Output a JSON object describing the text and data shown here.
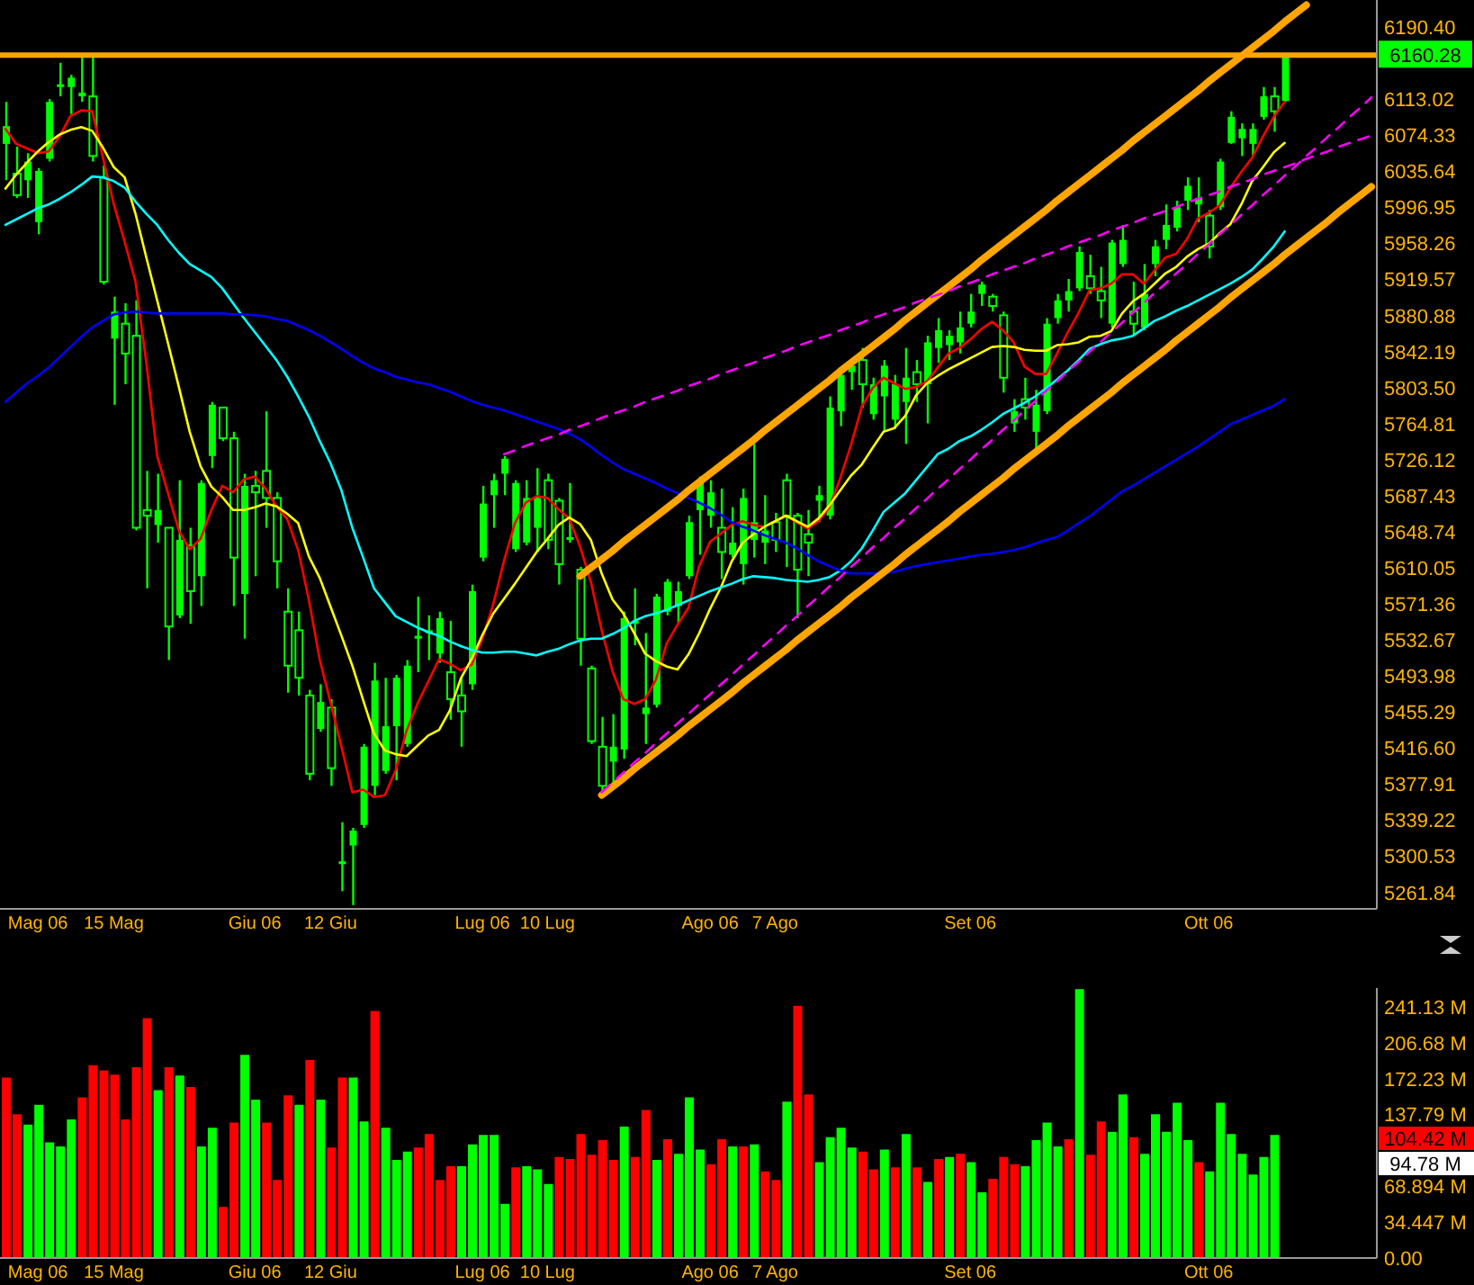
{
  "chart_data": [
    {
      "type": "candlestick",
      "color": "#00ff00",
      "categories": [
        null,
        null,
        null,
        "Mag 06",
        null,
        null,
        null,
        null,
        null,
        null,
        "15 Mag",
        null,
        null,
        null,
        null,
        null,
        null,
        null,
        null,
        null,
        null,
        null,
        null,
        "Giu 06",
        null,
        null,
        null,
        null,
        null,
        null,
        "12 Giu",
        null,
        null,
        null,
        null,
        null,
        null,
        null,
        null,
        null,
        null,
        null,
        null,
        null,
        "Lug 06",
        null,
        null,
        null,
        null,
        null,
        "10 Lug",
        null,
        null,
        null,
        null,
        null,
        null,
        null,
        null,
        null,
        null,
        null,
        null,
        null,
        null,
        "Ago 06",
        null,
        null,
        null,
        null,
        null,
        "7 Ago",
        null,
        null,
        null,
        null,
        null,
        null,
        null,
        null,
        null,
        null,
        null,
        null,
        null,
        null,
        null,
        null,
        null,
        "Set 06",
        null,
        null,
        null,
        null,
        null,
        null,
        null,
        null,
        null,
        null,
        null,
        null,
        null,
        null,
        null,
        null,
        null,
        null,
        null,
        null,
        null,
        "Ott 06",
        null,
        null,
        null,
        null,
        null,
        null,
        null,
        null,
        null,
        null,
        null,
        null,
        null,
        null,
        null
      ],
      "ohlc": [
        [
          6065,
          6110,
          6026,
          6084
        ],
        [
          6033,
          6062,
          6007,
          6010
        ],
        [
          6026,
          6055,
          6007,
          6046
        ],
        [
          5981,
          6039,
          5968,
          6036
        ],
        [
          6049,
          6113,
          6046,
          6110
        ],
        [
          6126,
          6152,
          6116,
          6129
        ],
        [
          6126,
          6139,
          6097,
          6136
        ],
        [
          6116,
          6158,
          6110,
          6120
        ],
        [
          6116,
          6158,
          6046,
          6052
        ],
        [
          6029,
          6042,
          5914,
          5917
        ],
        [
          5856,
          5901,
          5785,
          5885
        ],
        [
          5872,
          5894,
          5807,
          5840
        ],
        [
          5859,
          5897,
          5650,
          5653
        ],
        [
          5672,
          5714,
          5588,
          5666
        ],
        [
          5656,
          5711,
          5637,
          5672
        ],
        [
          5653,
          5653,
          5511,
          5547
        ],
        [
          5559,
          5704,
          5556,
          5640
        ],
        [
          5634,
          5653,
          5550,
          5585
        ],
        [
          5601,
          5704,
          5569,
          5701
        ],
        [
          5730,
          5788,
          5717,
          5785
        ],
        [
          5782,
          5782,
          5746,
          5749
        ],
        [
          5749,
          5756,
          5569,
          5621
        ],
        [
          5582,
          5711,
          5534,
          5698
        ],
        [
          5698,
          5714,
          5601,
          5691
        ],
        [
          5714,
          5778,
          5653,
          5685
        ],
        [
          5685,
          5691,
          5588,
          5617
        ],
        [
          5563,
          5588,
          5476,
          5505
        ],
        [
          5543,
          5563,
          5473,
          5492
        ],
        [
          5473,
          5479,
          5382,
          5389
        ],
        [
          5437,
          5485,
          5434,
          5466
        ],
        [
          5460,
          5469,
          5376,
          5395
        ],
        [
          5292,
          5337,
          5263,
          5295
        ],
        [
          5312,
          5331,
          5248,
          5328
        ],
        [
          5334,
          5421,
          5331,
          5418
        ],
        [
          5376,
          5508,
          5366,
          5489
        ],
        [
          5392,
          5492,
          5389,
          5440
        ],
        [
          5440,
          5495,
          5382,
          5492
        ],
        [
          5421,
          5511,
          5418,
          5505
        ],
        [
          5534,
          5579,
          5498,
          5537
        ],
        [
          5540,
          5559,
          5511,
          5543
        ],
        [
          5518,
          5563,
          5508,
          5556
        ],
        [
          5498,
          5553,
          5447,
          5469
        ],
        [
          5473,
          5492,
          5418,
          5456
        ],
        [
          5485,
          5592,
          5479,
          5585
        ],
        [
          5621,
          5698,
          5617,
          5679
        ],
        [
          5688,
          5711,
          5653,
          5704
        ],
        [
          5711,
          5730,
          5688,
          5727
        ],
        [
          5630,
          5704,
          5627,
          5701
        ],
        [
          5637,
          5704,
          5634,
          5685
        ],
        [
          5653,
          5717,
          5627,
          5685
        ],
        [
          5704,
          5711,
          5630,
          5640
        ],
        [
          5682,
          5685,
          5592,
          5614
        ],
        [
          5640,
          5701,
          5637,
          5643
        ],
        [
          5608,
          5611,
          5505,
          5534
        ],
        [
          5502,
          5505,
          5421,
          5424
        ],
        [
          5418,
          5450,
          5366,
          5376
        ],
        [
          5402,
          5453,
          5379,
          5418
        ],
        [
          5415,
          5563,
          5405,
          5556
        ],
        [
          5550,
          5588,
          5527,
          5553
        ],
        [
          5453,
          5540,
          5421,
          5460
        ],
        [
          5463,
          5582,
          5460,
          5579
        ],
        [
          5563,
          5598,
          5559,
          5595
        ],
        [
          5569,
          5595,
          5550,
          5585
        ],
        [
          5601,
          5666,
          5598,
          5659
        ],
        [
          5672,
          5708,
          5624,
          5704
        ],
        [
          5666,
          5704,
          5653,
          5691
        ],
        [
          5653,
          5695,
          5598,
          5627
        ],
        [
          5624,
          5675,
          5621,
          5637
        ],
        [
          5614,
          5695,
          5592,
          5685
        ],
        [
          5640,
          5743,
          5621,
          5659
        ],
        [
          5637,
          5688,
          5614,
          5650
        ],
        [
          5659,
          5669,
          5627,
          5640
        ],
        [
          5704,
          5711,
          5611,
          5666
        ],
        [
          5666,
          5669,
          5556,
          5608
        ],
        [
          5646,
          5672,
          5601,
          5637
        ],
        [
          5682,
          5698,
          5659,
          5688
        ],
        [
          5666,
          5794,
          5662,
          5782
        ],
        [
          5778,
          5820,
          5762,
          5817
        ],
        [
          5820,
          5833,
          5801,
          5827
        ],
        [
          5833,
          5846,
          5782,
          5807
        ],
        [
          5775,
          5814,
          5769,
          5807
        ],
        [
          5794,
          5833,
          5756,
          5827
        ],
        [
          5769,
          5817,
          5759,
          5807
        ],
        [
          5788,
          5846,
          5743,
          5814
        ],
        [
          5820,
          5833,
          5788,
          5807
        ],
        [
          5807,
          5859,
          5765,
          5852
        ],
        [
          5846,
          5878,
          5830,
          5865
        ],
        [
          5849,
          5865,
          5833,
          5859
        ],
        [
          5852,
          5885,
          5840,
          5868
        ],
        [
          5872,
          5904,
          5868,
          5885
        ],
        [
          5904,
          5917,
          5891,
          5914
        ],
        [
          5901,
          5904,
          5885,
          5891
        ],
        [
          5881,
          5885,
          5798,
          5814
        ],
        [
          5765,
          5791,
          5756,
          5778
        ],
        [
          5791,
          5814,
          5769,
          5782
        ],
        [
          5756,
          5801,
          5737,
          5785
        ],
        [
          5778,
          5878,
          5775,
          5872
        ],
        [
          5878,
          5904,
          5872,
          5897
        ],
        [
          5897,
          5920,
          5885,
          5907
        ],
        [
          5910,
          5955,
          5907,
          5949
        ],
        [
          5923,
          5946,
          5904,
          5910
        ],
        [
          5907,
          5933,
          5878,
          5897
        ],
        [
          5872,
          5962,
          5868,
          5959
        ],
        [
          5936,
          5978,
          5933,
          5962
        ],
        [
          5885,
          5917,
          5859,
          5872
        ],
        [
          5868,
          5936,
          5865,
          5904
        ],
        [
          5936,
          5962,
          5923,
          5955
        ],
        [
          5962,
          6000,
          5952,
          5978
        ],
        [
          5975,
          6004,
          5971,
          5997
        ],
        [
          6004,
          6029,
          5994,
          6020
        ],
        [
          6000,
          6029,
          5981,
          6007
        ],
        [
          5988,
          5994,
          5942,
          5955
        ],
        [
          5997,
          6049,
          5994,
          6046
        ],
        [
          6066,
          6100,
          6065,
          6094
        ],
        [
          6071,
          6087,
          6052,
          6081
        ],
        [
          6065,
          6087,
          6052,
          6081
        ],
        [
          6094,
          6126,
          6091,
          6116
        ],
        [
          6116,
          6126,
          6078,
          6100
        ],
        [
          6111,
          6160.28,
          6110,
          6160.28
        ],
        null,
        null,
        null,
        null,
        null,
        null,
        null,
        null
      ],
      "series": [
        {
          "type": "line",
          "color": "#ff0000",
          "values": [
            6081,
            6065,
            6060,
            6055,
            6057,
            6073,
            6095,
            6101,
            6100,
            6050,
            6000,
            5960,
            5917,
            5830,
            5730,
            5690,
            5650,
            5630,
            5641,
            5672,
            5698,
            5691,
            5705,
            5708,
            5695,
            5676,
            5662,
            5629,
            5575,
            5511,
            5465,
            5418,
            5369,
            5372,
            5364,
            5366,
            5393,
            5435,
            5464,
            5488,
            5512,
            5507,
            5500,
            5506,
            5534,
            5571,
            5618,
            5658,
            5680,
            5687,
            5685,
            5673,
            5663,
            5633,
            5595,
            5543,
            5499,
            5469,
            5464,
            5469,
            5490,
            5529,
            5549,
            5567,
            5612,
            5638,
            5647,
            5656,
            5660,
            5656,
            5654,
            5660,
            5666,
            5659,
            5652,
            5660,
            5675,
            5706,
            5742,
            5783,
            5803,
            5814,
            5808,
            5802,
            5804,
            5810,
            5825,
            5840,
            5846,
            5855,
            5866,
            5874,
            5865,
            5852,
            5826,
            5818,
            5818,
            5840,
            5863,
            5884,
            5908,
            5910,
            5915,
            5925,
            5925,
            5915,
            5929,
            5943,
            5947,
            5963,
            5985,
            5991,
            5999,
            6018,
            6035,
            6050,
            6073,
            6094,
            6110,
            null,
            null,
            null,
            null,
            null,
            null,
            null,
            null
          ]
        },
        {
          "type": "line",
          "color": "#ffff00",
          "values": [
            6017,
            6032,
            6045,
            6057,
            6067,
            6075,
            6080,
            6083,
            6079,
            6061,
            6040,
            6029,
            5990,
            5943,
            5897,
            5851,
            5804,
            5756,
            5719,
            5697,
            5686,
            5672,
            5672,
            5675,
            5679,
            5676,
            5668,
            5658,
            5622,
            5599,
            5568,
            5537,
            5505,
            5468,
            5432,
            5414,
            5410,
            5408,
            5419,
            5430,
            5436,
            5457,
            5491,
            5512,
            5538,
            5561,
            5577,
            5593,
            5610,
            5627,
            5641,
            5656,
            5664,
            5657,
            5640,
            5604,
            5576,
            5561,
            5540,
            5518,
            5510,
            5504,
            5501,
            5517,
            5540,
            5566,
            5589,
            5617,
            5637,
            5646,
            5654,
            5660,
            5666,
            5660,
            5654,
            5663,
            5677,
            5693,
            5709,
            5721,
            5739,
            5756,
            5760,
            5773,
            5795,
            5808,
            5816,
            5823,
            5829,
            5835,
            5841,
            5847,
            5848,
            5847,
            5844,
            5843,
            5843,
            5849,
            5850,
            5852,
            5858,
            5859,
            5864,
            5883,
            5896,
            5904,
            5915,
            5926,
            5933,
            5944,
            5952,
            5958,
            5969,
            5979,
            6000,
            6025,
            6040,
            6056,
            6066,
            null,
            null,
            null,
            null,
            null,
            null,
            null,
            null
          ]
        },
        {
          "type": "line",
          "color": "#00ffff",
          "values": [
            5978,
            5984,
            5990,
            5996,
            6000,
            6006,
            6013,
            6021,
            6030,
            6029,
            6025,
            6018,
            6003,
            5990,
            5978,
            5962,
            5948,
            5936,
            5929,
            5922,
            5910,
            5894,
            5878,
            5863,
            5848,
            5833,
            5815,
            5794,
            5772,
            5746,
            5722,
            5693,
            5653,
            5621,
            5588,
            5573,
            5558,
            5552,
            5546,
            5541,
            5537,
            5531,
            5526,
            5522,
            5519,
            5519,
            5520,
            5520,
            5518,
            5516,
            5520,
            5523,
            5528,
            5532,
            5534,
            5534,
            5539,
            5545,
            5553,
            5558,
            5561,
            5565,
            5570,
            5575,
            5580,
            5585,
            5589,
            5593,
            5598,
            5601,
            5600,
            5599,
            5597,
            5596,
            5595,
            5597,
            5600,
            5607,
            5617,
            5631,
            5650,
            5670,
            5680,
            5690,
            5704,
            5718,
            5732,
            5738,
            5746,
            5751,
            5758,
            5766,
            5775,
            5781,
            5787,
            5794,
            5803,
            5812,
            5822,
            5833,
            5845,
            5850,
            5854,
            5856,
            5859,
            5867,
            5875,
            5880,
            5886,
            5891,
            5897,
            5903,
            5909,
            5915,
            5922,
            5930,
            5942,
            5955,
            5971,
            null,
            null,
            null,
            null,
            null,
            null,
            null,
            null
          ]
        },
        {
          "type": "line",
          "color": "#0000ff",
          "values": [
            5788,
            5798,
            5808,
            5816,
            5825,
            5836,
            5847,
            5858,
            5868,
            5875,
            5882,
            5884,
            5885,
            5884,
            5883,
            5883,
            5883,
            5883,
            5883,
            5883,
            5883,
            5882,
            5882,
            5881,
            5880,
            5877,
            5875,
            5870,
            5865,
            5859,
            5852,
            5845,
            5837,
            5830,
            5824,
            5820,
            5815,
            5812,
            5809,
            5807,
            5803,
            5799,
            5794,
            5789,
            5785,
            5782,
            5779,
            5775,
            5771,
            5767,
            5763,
            5759,
            5754,
            5748,
            5740,
            5731,
            5723,
            5716,
            5711,
            5706,
            5701,
            5695,
            5690,
            5685,
            5680,
            5674,
            5667,
            5659,
            5654,
            5650,
            5645,
            5641,
            5637,
            5631,
            5624,
            5617,
            5612,
            5607,
            5604,
            5604,
            5604,
            5604,
            5606,
            5609,
            5612,
            5614,
            5616,
            5618,
            5620,
            5622,
            5624,
            5625,
            5627,
            5629,
            5632,
            5636,
            5640,
            5643,
            5650,
            5658,
            5665,
            5674,
            5683,
            5692,
            5698,
            5705,
            5712,
            5719,
            5726,
            5733,
            5740,
            5748,
            5756,
            5764,
            5769,
            5774,
            5779,
            5784,
            5791,
            null,
            null,
            null,
            null,
            null,
            null,
            null,
            null
          ]
        },
        {
          "type": "line",
          "color": "#ffa500",
          "values": [
            null,
            null,
            null,
            null,
            null,
            null,
            null,
            null,
            null,
            null,
            null,
            null,
            null,
            null,
            null,
            null,
            null,
            null,
            null,
            null,
            null,
            null,
            null,
            null,
            null,
            null,
            null,
            null,
            null,
            null,
            null,
            null,
            null,
            null,
            null,
            null,
            null,
            null,
            null,
            null,
            null,
            null,
            null,
            null,
            null,
            null,
            null,
            null,
            null,
            null,
            null,
            null,
            null,
            5601,
            5610,
            5619,
            5628,
            5638,
            5647,
            5656,
            5665,
            5674,
            5683,
            5693,
            5702,
            5711,
            5720,
            5729,
            5738,
            5747,
            5757,
            5766,
            5775,
            5784,
            5793,
            5802,
            5811,
            5821,
            5830,
            5839,
            5848,
            5857,
            5866,
            5876,
            5885,
            5894,
            5903,
            5912,
            5921,
            5930,
            5940,
            5949,
            5958,
            5967,
            5976,
            5985,
            5994,
            6004,
            6013,
            6022,
            6031,
            6040,
            6049,
            6058,
            6068,
            6077,
            6086,
            6095,
            6104,
            6113,
            6122,
            6132,
            6141,
            6150,
            6159,
            6168,
            6177,
            6186,
            6196,
            6205,
            6214,
            null,
            null,
            null,
            null,
            null,
            null
          ]
        },
        {
          "type": "line",
          "color": "#ffa500",
          "values": [
            null,
            null,
            null,
            null,
            null,
            null,
            null,
            null,
            null,
            null,
            null,
            null,
            null,
            null,
            null,
            null,
            null,
            null,
            null,
            null,
            null,
            null,
            null,
            null,
            null,
            null,
            null,
            null,
            null,
            null,
            null,
            null,
            null,
            null,
            null,
            null,
            null,
            null,
            null,
            null,
            null,
            null,
            null,
            null,
            null,
            null,
            null,
            null,
            null,
            null,
            null,
            null,
            null,
            null,
            null,
            5366,
            5375,
            5384,
            5394,
            5403,
            5412,
            5421,
            5430,
            5440,
            5449,
            5458,
            5467,
            5476,
            5486,
            5495,
            5504,
            5513,
            5522,
            5532,
            5541,
            5550,
            5559,
            5568,
            5578,
            5587,
            5596,
            5605,
            5614,
            5624,
            5633,
            5642,
            5651,
            5660,
            5670,
            5679,
            5688,
            5697,
            5706,
            5716,
            5725,
            5734,
            5743,
            5752,
            5762,
            5771,
            5780,
            5789,
            5798,
            5808,
            5817,
            5826,
            5835,
            5844,
            5854,
            5863,
            5872,
            5881,
            5890,
            5900,
            5909,
            5918,
            5927,
            5936,
            5946,
            5955,
            5964,
            5973,
            5982,
            5992,
            6001,
            6010,
            6019
          ]
        },
        {
          "type": "line",
          "color": "#ff00ff",
          "line_style": "dashed",
          "values": [
            null,
            null,
            null,
            null,
            null,
            null,
            null,
            null,
            null,
            null,
            null,
            null,
            null,
            null,
            null,
            null,
            null,
            null,
            null,
            null,
            null,
            null,
            null,
            null,
            null,
            null,
            null,
            null,
            null,
            null,
            null,
            null,
            null,
            null,
            null,
            null,
            null,
            null,
            null,
            null,
            null,
            null,
            null,
            null,
            null,
            null,
            5732,
            5736,
            5741,
            5745,
            5749,
            5753,
            5758,
            5762,
            5766,
            5771,
            5775,
            5779,
            5783,
            5788,
            5792,
            5796,
            5800,
            5805,
            5809,
            5813,
            5818,
            5822,
            5826,
            5830,
            5835,
            5839,
            5843,
            5848,
            5852,
            5856,
            5860,
            5865,
            5869,
            5873,
            5878,
            5882,
            5886,
            5890,
            5895,
            5899,
            5903,
            5907,
            5912,
            5916,
            5920,
            5925,
            5929,
            5933,
            5937,
            5942,
            5946,
            5950,
            5955,
            5959,
            5963,
            5967,
            5972,
            5976,
            5980,
            5985,
            5989,
            5993,
            5997,
            6002,
            6006,
            6010,
            6014,
            6019,
            6023,
            6027,
            6032,
            6036,
            6040,
            6044,
            6049,
            6053,
            6057,
            6062,
            6066,
            6070,
            6074
          ]
        },
        {
          "type": "line",
          "color": "#ff00ff",
          "line_style": "dashed",
          "values": [
            null,
            null,
            null,
            null,
            null,
            null,
            null,
            null,
            null,
            null,
            null,
            null,
            null,
            null,
            null,
            null,
            null,
            null,
            null,
            null,
            null,
            null,
            null,
            null,
            null,
            null,
            null,
            null,
            null,
            null,
            null,
            null,
            null,
            null,
            null,
            null,
            null,
            null,
            null,
            null,
            null,
            null,
            null,
            null,
            null,
            null,
            null,
            null,
            null,
            null,
            null,
            null,
            null,
            null,
            null,
            5369,
            5380,
            5390,
            5401,
            5411,
            5422,
            5432,
            5443,
            5453,
            5464,
            5474,
            5485,
            5495,
            5506,
            5516,
            5527,
            5537,
            5548,
            5558,
            5569,
            5579,
            5590,
            5600,
            5611,
            5621,
            5632,
            5642,
            5653,
            5663,
            5674,
            5684,
            5695,
            5705,
            5716,
            5726,
            5737,
            5747,
            5758,
            5768,
            5779,
            5789,
            5800,
            5810,
            5821,
            5831,
            5842,
            5852,
            5863,
            5873,
            5884,
            5894,
            5905,
            5915,
            5926,
            5936,
            5947,
            5957,
            5968,
            5978,
            5989,
            5999,
            6010,
            6020,
            6031,
            6041,
            6052,
            6062,
            6073,
            6083,
            6094,
            6104,
            6115
          ]
        }
      ],
      "ylim": [
        5244,
        6219.4
      ],
      "yticks": [
        {
          "value": 6190.4,
          "label": "6190.40"
        },
        6113.02,
        6074.33,
        6035.64,
        5996.95,
        5958.26,
        5919.57,
        5880.88,
        5842.19,
        {
          "value": 5803.5,
          "label": "5803.50"
        },
        5764.81,
        5726.12,
        5687.43,
        5648.74,
        5610.05,
        5571.36,
        5532.67,
        5493.98,
        5455.29,
        {
          "value": 5416.6,
          "label": "5416.60"
        },
        5377.91,
        5339.22,
        5300.53,
        5261.84
      ],
      "ref_lines": [
        {
          "axis": "y",
          "value": 6160.28,
          "label": "6160.28",
          "color": "#ffa500"
        }
      ]
    },
    {
      "type": "bar",
      "categories": [
        null,
        null,
        null,
        "Mag 06",
        null,
        null,
        null,
        null,
        null,
        null,
        "15 Mag",
        null,
        null,
        null,
        null,
        null,
        null,
        null,
        null,
        null,
        null,
        null,
        null,
        "Giu 06",
        null,
        null,
        null,
        null,
        null,
        null,
        "12 Giu",
        null,
        null,
        null,
        null,
        null,
        null,
        null,
        null,
        null,
        null,
        null,
        null,
        null,
        "Lug 06",
        null,
        null,
        null,
        null,
        null,
        "10 Lug",
        null,
        null,
        null,
        null,
        null,
        null,
        null,
        null,
        null,
        null,
        null,
        null,
        null,
        null,
        "Ago 06",
        null,
        null,
        null,
        null,
        null,
        "7 Ago",
        null,
        null,
        null,
        null,
        null,
        null,
        null,
        null,
        null,
        null,
        null,
        null,
        null,
        null,
        null,
        null,
        null,
        "Set 06",
        null,
        null,
        null,
        null,
        null,
        null,
        null,
        null,
        null,
        null,
        null,
        null,
        null,
        null,
        null,
        null,
        null,
        null,
        null,
        null,
        null,
        "Ott 06",
        null,
        null,
        null,
        null,
        null,
        null,
        null,
        null,
        null,
        null,
        null,
        null,
        null,
        null,
        null
      ],
      "values": [
        173,
        138,
        128,
        147,
        111,
        107,
        133,
        154,
        185,
        180,
        176,
        133,
        183,
        230,
        161,
        183,
        175,
        164,
        107,
        125,
        49,
        130,
        195,
        152,
        130,
        75,
        156,
        147,
        190,
        152,
        106,
        173,
        173,
        131,
        237,
        125,
        94,
        102,
        106,
        119,
        75,
        88,
        88,
        109,
        118,
        118,
        52,
        87,
        88,
        85,
        71,
        97,
        95,
        119,
        99,
        113,
        94,
        126,
        97,
        142,
        94,
        114,
        100,
        154,
        104,
        90,
        114,
        107,
        107,
        109,
        83,
        75,
        150,
        242,
        157,
        92,
        116,
        125,
        106,
        102,
        85,
        104,
        87,
        119,
        87,
        73,
        95,
        97,
        100,
        92,
        63,
        76,
        97,
        90,
        88,
        113,
        130,
        107,
        114,
        258,
        99,
        131,
        121,
        157,
        116,
        100,
        138,
        121,
        149,
        113,
        92,
        83,
        149,
        119,
        100,
        80,
        97,
        118,
        null,
        null,
        null,
        null,
        null,
        null,
        null,
        null,
        null
      ],
      "colors": [
        "#ff0000",
        "#ff0000",
        "#00ff00",
        "#00ff00",
        "#00ff00",
        "#00ff00",
        "#00ff00",
        "#ff0000",
        "#ff0000",
        "#ff0000",
        "#ff0000",
        "#ff0000",
        "#ff0000",
        "#ff0000",
        "#00ff00",
        "#ff0000",
        "#00ff00",
        "#ff0000",
        "#00ff00",
        "#00ff00",
        "#ff0000",
        "#ff0000",
        "#00ff00",
        "#00ff00",
        "#ff0000",
        "#ff0000",
        "#ff0000",
        "#00ff00",
        "#ff0000",
        "#00ff00",
        "#ff0000",
        "#ff0000",
        "#00ff00",
        "#00ff00",
        "#ff0000",
        "#00ff00",
        "#00ff00",
        "#00ff00",
        "#ff0000",
        "#ff0000",
        "#ff0000",
        "#ff0000",
        "#00ff00",
        "#00ff00",
        "#00ff00",
        "#00ff00",
        "#00ff00",
        "#ff0000",
        "#00ff00",
        "#00ff00",
        "#00ff00",
        "#ff0000",
        "#ff0000",
        "#ff0000",
        "#ff0000",
        "#ff0000",
        "#ff0000",
        "#00ff00",
        "#ff0000",
        "#ff0000",
        "#00ff00",
        "#ff0000",
        "#00ff00",
        "#00ff00",
        "#00ff00",
        "#ff0000",
        "#ff0000",
        "#00ff00",
        "#ff0000",
        "#00ff00",
        "#ff0000",
        "#ff0000",
        "#00ff00",
        "#ff0000",
        "#ff0000",
        "#00ff00",
        "#00ff00",
        "#00ff00",
        "#00ff00",
        "#ff0000",
        "#ff0000",
        "#00ff00",
        "#ff0000",
        "#00ff00",
        "#ff0000",
        "#00ff00",
        "#ff0000",
        "#00ff00",
        "#ff0000",
        "#00ff00",
        "#00ff00",
        "#ff0000",
        "#ff0000",
        "#ff0000",
        "#00ff00",
        "#00ff00",
        "#00ff00",
        "#00ff00",
        "#ff0000",
        "#00ff00",
        "#ff0000",
        "#ff0000",
        "#00ff00",
        "#00ff00",
        "#ff0000",
        "#00ff00",
        "#00ff00",
        "#00ff00",
        "#00ff00",
        "#00ff00",
        "#ff0000",
        "#00ff00",
        "#00ff00",
        "#00ff00",
        "#00ff00",
        "#00ff00",
        "#00ff00",
        "#00ff00",
        "#00ff00",
        "#00ff00",
        "#00ff00",
        "#00ff00",
        "#00ff00",
        "#00ff00",
        "#00ff00",
        "#00ff00",
        "#00ff00"
      ],
      "ylim": [
        0,
        259
      ],
      "yticks": [
        {
          "value": 0,
          "label": "0.00"
        },
        {
          "value": 34.447,
          "label": "34.447 M"
        },
        {
          "value": 68.894,
          "label": "68.894 M"
        },
        {
          "value": 137.79,
          "label": "137.79 M"
        },
        {
          "value": 172.23,
          "label": "172.23 M"
        },
        {
          "value": 206.68,
          "label": "206.68 M"
        },
        {
          "value": 241.13,
          "label": "241.13 M"
        }
      ],
      "annotations": [
        "104.42 M",
        "94.78 M"
      ]
    }
  ]
}
